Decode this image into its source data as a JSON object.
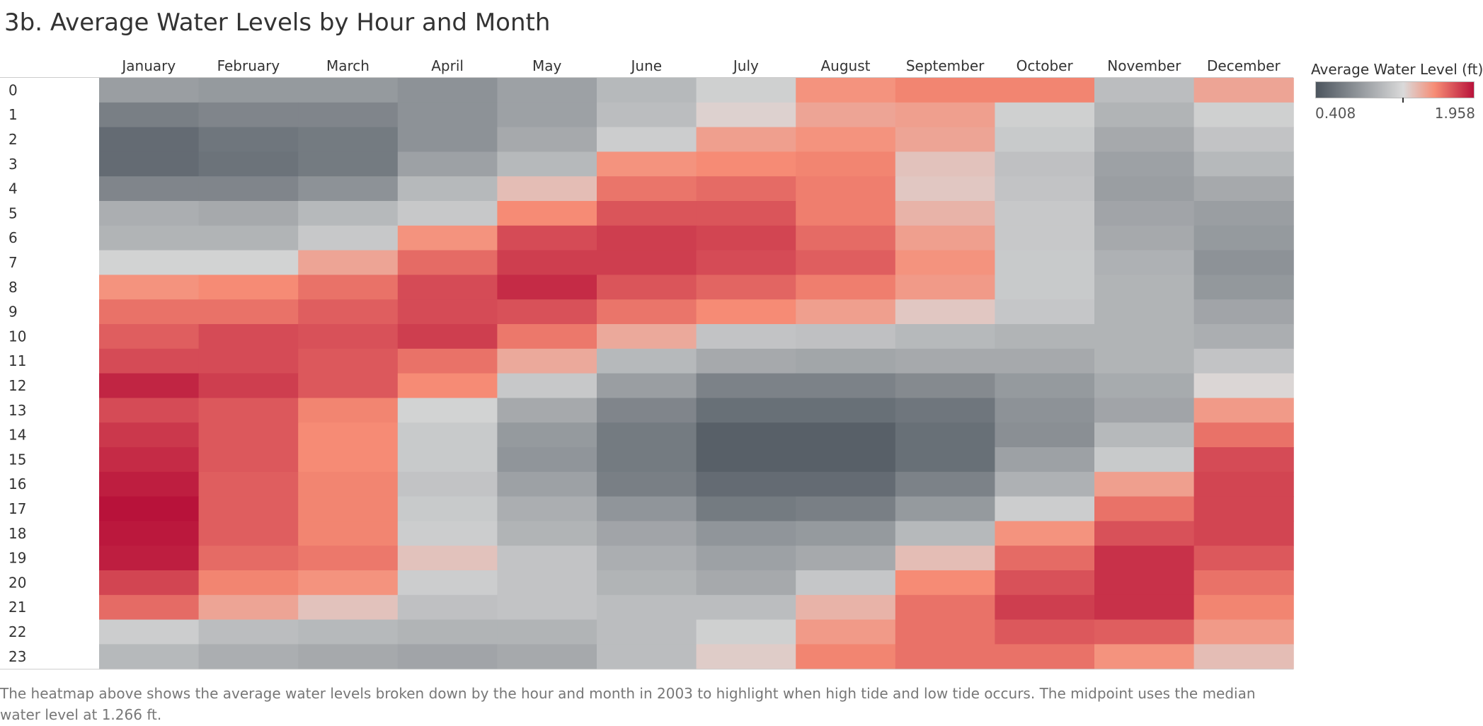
{
  "chart_data": {
    "type": "heatmap",
    "title": "3b. Average Water Levels by Hour and Month",
    "columns": [
      "January",
      "February",
      "March",
      "April",
      "May",
      "June",
      "July",
      "August",
      "September",
      "October",
      "November",
      "December"
    ],
    "rows": [
      "0",
      "1",
      "2",
      "3",
      "4",
      "5",
      "6",
      "7",
      "8",
      "9",
      "10",
      "11",
      "12",
      "13",
      "14",
      "15",
      "16",
      "17",
      "18",
      "19",
      "20",
      "21",
      "22",
      "23"
    ],
    "values": [
      [
        0.88,
        0.85,
        0.85,
        0.8,
        0.9,
        1.05,
        1.2,
        1.55,
        1.6,
        1.6,
        1.08,
        1.48
      ],
      [
        0.68,
        0.72,
        0.72,
        0.8,
        0.9,
        1.08,
        1.3,
        1.48,
        1.5,
        1.2,
        1.02,
        1.2
      ],
      [
        0.55,
        0.62,
        0.65,
        0.8,
        0.95,
        1.18,
        1.5,
        1.55,
        1.48,
        1.16,
        0.95,
        1.12
      ],
      [
        0.55,
        0.6,
        0.65,
        0.9,
        1.05,
        1.55,
        1.58,
        1.6,
        1.36,
        1.1,
        0.9,
        1.05
      ],
      [
        0.72,
        0.72,
        0.8,
        1.05,
        1.38,
        1.65,
        1.68,
        1.62,
        1.34,
        1.12,
        0.88,
        0.95
      ],
      [
        0.98,
        0.95,
        1.05,
        1.15,
        1.58,
        1.75,
        1.75,
        1.62,
        1.42,
        1.15,
        0.92,
        0.88
      ],
      [
        1.02,
        1.02,
        1.15,
        1.55,
        1.78,
        1.82,
        1.8,
        1.68,
        1.5,
        1.15,
        0.95,
        0.85
      ],
      [
        1.22,
        1.22,
        1.48,
        1.68,
        1.82,
        1.82,
        1.78,
        1.72,
        1.55,
        1.16,
        1.0,
        0.8
      ],
      [
        1.55,
        1.58,
        1.66,
        1.78,
        1.88,
        1.75,
        1.7,
        1.62,
        1.52,
        1.16,
        1.02,
        0.84
      ],
      [
        1.66,
        1.66,
        1.72,
        1.78,
        1.76,
        1.65,
        1.58,
        1.5,
        1.34,
        1.14,
        1.02,
        0.92
      ],
      [
        1.72,
        1.78,
        1.76,
        1.82,
        1.64,
        1.46,
        1.12,
        1.1,
        1.05,
        1.02,
        1.02,
        0.98
      ],
      [
        1.78,
        1.78,
        1.74,
        1.66,
        1.46,
        1.05,
        0.95,
        0.93,
        0.95,
        0.95,
        1.02,
        1.12
      ],
      [
        1.9,
        1.82,
        1.74,
        1.58,
        1.15,
        0.88,
        0.7,
        0.7,
        0.75,
        0.85,
        0.96,
        1.28
      ],
      [
        1.78,
        1.74,
        1.6,
        1.22,
        0.95,
        0.72,
        0.58,
        0.58,
        0.62,
        0.8,
        0.92,
        1.52
      ],
      [
        1.84,
        1.74,
        1.58,
        1.16,
        0.85,
        0.65,
        0.48,
        0.48,
        0.58,
        0.78,
        1.05,
        1.66
      ],
      [
        1.88,
        1.74,
        1.58,
        1.16,
        0.82,
        0.65,
        0.48,
        0.48,
        0.58,
        0.9,
        1.16,
        1.78
      ],
      [
        1.92,
        1.72,
        1.6,
        1.12,
        0.9,
        0.68,
        0.55,
        0.55,
        0.7,
        1.0,
        1.5,
        1.8
      ],
      [
        1.98,
        1.72,
        1.6,
        1.16,
        0.98,
        0.82,
        0.65,
        0.68,
        0.85,
        1.18,
        1.66,
        1.8
      ],
      [
        1.94,
        1.72,
        1.6,
        1.18,
        1.02,
        0.92,
        0.82,
        0.85,
        1.05,
        1.55,
        1.76,
        1.8
      ],
      [
        1.92,
        1.68,
        1.64,
        1.36,
        1.12,
        0.98,
        0.9,
        0.95,
        1.38,
        1.68,
        1.86,
        1.74
      ],
      [
        1.8,
        1.6,
        1.55,
        1.18,
        1.12,
        1.02,
        0.95,
        1.14,
        1.58,
        1.76,
        1.86,
        1.66
      ],
      [
        1.68,
        1.48,
        1.36,
        1.1,
        1.12,
        1.08,
        1.08,
        1.42,
        1.66,
        1.82,
        1.86,
        1.6
      ],
      [
        1.18,
        1.08,
        1.05,
        1.02,
        1.02,
        1.08,
        1.2,
        1.52,
        1.66,
        1.74,
        1.72,
        1.52
      ],
      [
        1.05,
        0.98,
        0.95,
        0.92,
        0.95,
        1.08,
        1.32,
        1.6,
        1.66,
        1.66,
        1.55,
        1.38
      ]
    ],
    "color_scale": {
      "min": 0.408,
      "mid": 1.266,
      "max": 1.958,
      "low_color": "#4c555e",
      "mid_color": "#dadada",
      "high_color": "#b8123a"
    },
    "legend": {
      "title": "Average Water Level (ft)",
      "min_label": "0.408",
      "max_label": "1.958",
      "placement": "right"
    }
  },
  "caption": "The heatmap above shows the average water levels broken down by the hour and month in 2003 to highlight when high tide and low tide occurs. The midpoint uses the median water level at 1.266 ft."
}
